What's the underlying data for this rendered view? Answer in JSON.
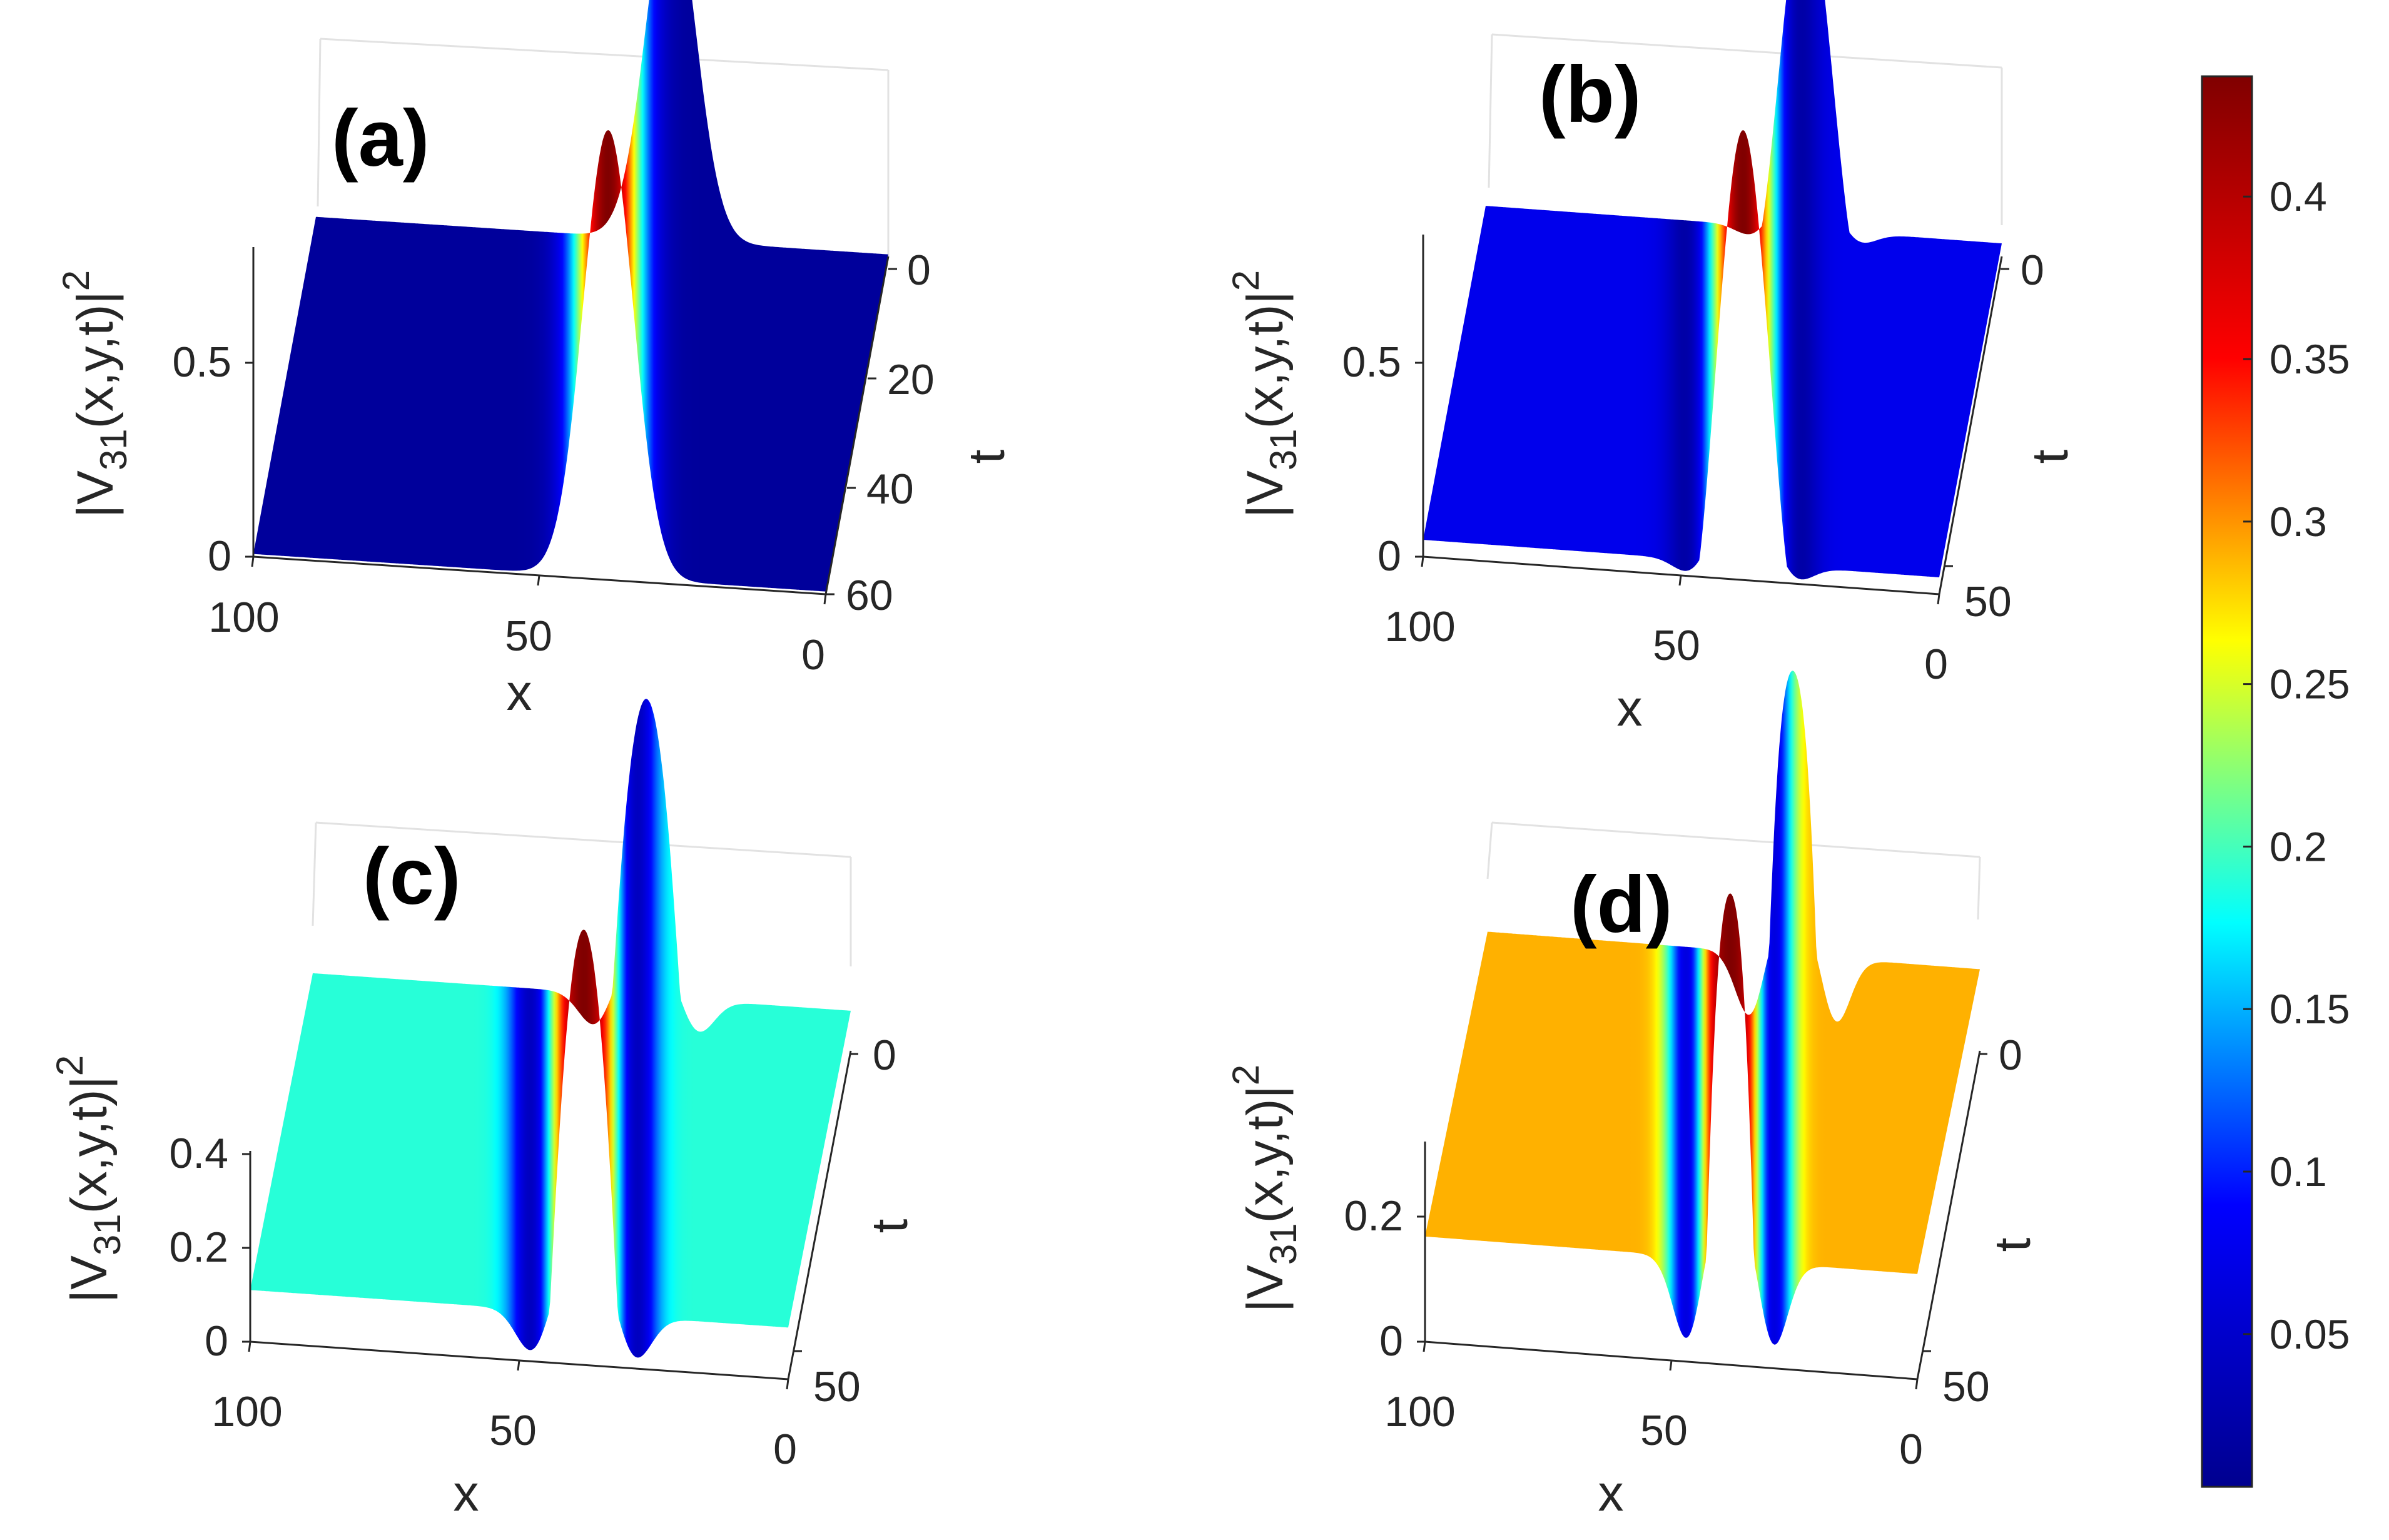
{
  "colormap": {
    "name": "jet",
    "stops": [
      "#00008f",
      "#0000ff",
      "#00ffff",
      "#ffff00",
      "#ff0000",
      "#800000"
    ],
    "range": [
      0.003,
      0.437
    ],
    "tick_values": [
      0.05,
      0.1,
      0.15,
      0.2,
      0.25,
      0.3,
      0.35,
      0.4
    ],
    "tick_labels": [
      "0.05",
      "0.1",
      "0.15",
      "0.2",
      "0.25",
      "0.3",
      "0.35",
      "0.4"
    ]
  },
  "chart_data": [
    {
      "type": "surface",
      "panel_label": "(a)",
      "xlabel": "x",
      "ylabel": "t",
      "zlabel": "|V",
      "zlabel_sub": "31",
      "zlabel_rest": "(x,y,t)|",
      "zlabel_sup": "2",
      "x_ticks": [
        "100",
        "50",
        "0"
      ],
      "t_ticks": [
        "0",
        "20",
        "40",
        "60"
      ],
      "z_ticks": [
        "0",
        "0.5"
      ],
      "background_value": 0.012,
      "peak_value": 0.437,
      "peak_x": 38,
      "dip_depth": 0,
      "dip_offset": 0
    },
    {
      "type": "surface",
      "panel_label": "(b)",
      "xlabel": "x",
      "ylabel": "t",
      "zlabel": "|V",
      "zlabel_sub": "31",
      "zlabel_rest": "(x,y,t)|",
      "zlabel_sup": "2",
      "x_ticks": [
        "100",
        "50",
        "0"
      ],
      "t_ticks": [
        "0",
        "50"
      ],
      "z_ticks": [
        "0",
        "0.5"
      ],
      "background_value": 0.075,
      "peak_value": 0.437,
      "peak_x": 38,
      "dip_depth": 0.075,
      "dip_offset": 8
    },
    {
      "type": "surface",
      "panel_label": "(c)",
      "xlabel": "x",
      "ylabel": "t",
      "zlabel": "|V",
      "zlabel_sub": "31",
      "zlabel_rest": "(x,y,t)|",
      "zlabel_sup": "2",
      "x_ticks": [
        "100",
        "50",
        "0"
      ],
      "t_ticks": [
        "0",
        "50"
      ],
      "z_ticks": [
        "0",
        "0.2",
        "0.4"
      ],
      "background_value": 0.19,
      "peak_value": 0.437,
      "peak_x": 38,
      "dip_depth": 0.19,
      "dip_offset": 7
    },
    {
      "type": "surface",
      "panel_label": "(d)",
      "xlabel": "x",
      "ylabel": "t",
      "zlabel": "|V",
      "zlabel_sub": "31",
      "zlabel_rest": "(x,y,t)|",
      "zlabel_sup": "2",
      "x_ticks": [
        "100",
        "50",
        "0"
      ],
      "t_ticks": [
        "0",
        "50"
      ],
      "z_ticks": [
        "0",
        "0.2"
      ],
      "background_value": 0.29,
      "peak_value": 0.437,
      "peak_x": 38,
      "dip_depth": 0.29,
      "dip_offset": 6
    }
  ]
}
